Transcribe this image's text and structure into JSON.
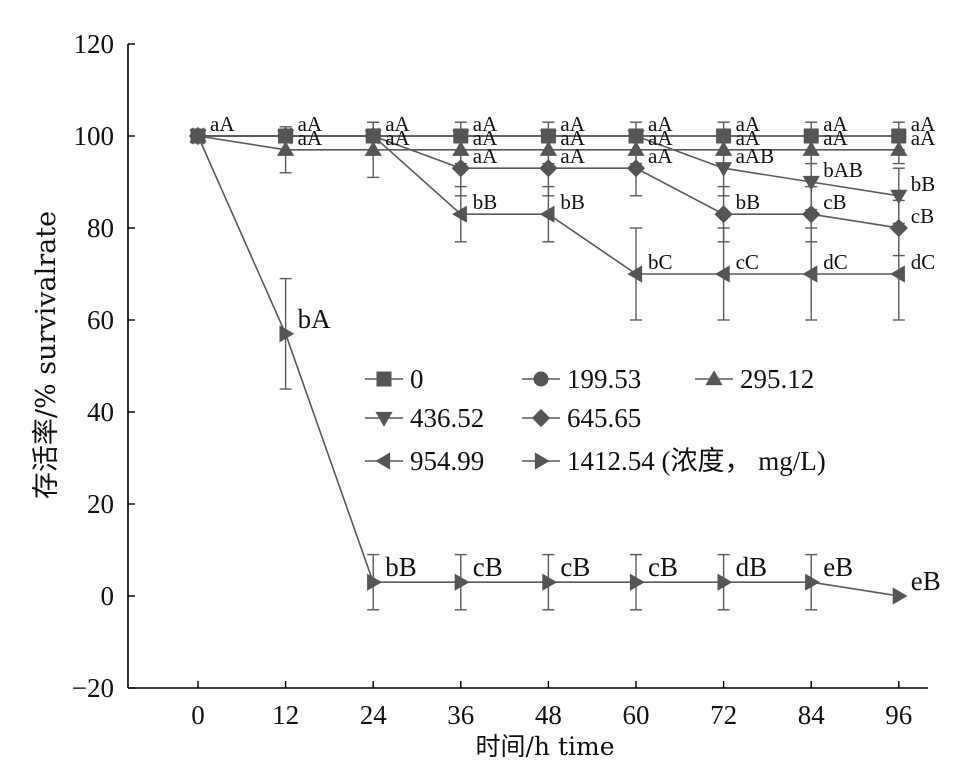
{
  "chart_data": {
    "type": "line",
    "xlabel": "时间/h time",
    "ylabel": "存活率/% survivalrate",
    "x": [
      0,
      12,
      24,
      36,
      48,
      60,
      72,
      84,
      96
    ],
    "xlim": [
      -15,
      104
    ],
    "ylim": [
      -20,
      120
    ],
    "yticks": [
      -20,
      0,
      20,
      40,
      60,
      80,
      100,
      120
    ],
    "grid": false,
    "legend_suffix": "(浓度， mg/L)",
    "series": [
      {
        "name": "0",
        "marker": "square",
        "values": [
          100,
          100,
          100,
          100,
          100,
          100,
          100,
          100,
          100
        ],
        "errors": [
          0,
          0,
          0,
          0,
          0,
          0,
          0,
          0,
          0
        ]
      },
      {
        "name": "199.53",
        "marker": "circle",
        "values": [
          100,
          100,
          100,
          100,
          100,
          100,
          100,
          100,
          100
        ],
        "errors": [
          0,
          0,
          3,
          3,
          3,
          3,
          3,
          3,
          3
        ]
      },
      {
        "name": "295.12",
        "marker": "triangle-up",
        "values": [
          100,
          97,
          97,
          97,
          97,
          97,
          97,
          97,
          97
        ],
        "errors": [
          0,
          5,
          6,
          3,
          3,
          3,
          3,
          3,
          3
        ]
      },
      {
        "name": "436.52",
        "marker": "triangle-down",
        "values": [
          100,
          100,
          100,
          100,
          100,
          100,
          93,
          90,
          87
        ],
        "errors": [
          0,
          0,
          0,
          0,
          0,
          0,
          6,
          6,
          6
        ]
      },
      {
        "name": "645.65",
        "marker": "diamond",
        "values": [
          100,
          100,
          100,
          93,
          93,
          93,
          83,
          83,
          80
        ],
        "errors": [
          0,
          0,
          0,
          6,
          6,
          6,
          6,
          6,
          6
        ]
      },
      {
        "name": "954.99",
        "marker": "triangle-left",
        "values": [
          100,
          100,
          100,
          83,
          83,
          70,
          70,
          70,
          70
        ],
        "errors": [
          0,
          0,
          0,
          6,
          6,
          10,
          10,
          10,
          10
        ]
      },
      {
        "name": "1412.54",
        "marker": "triangle-right",
        "values": [
          100,
          57,
          3,
          3,
          3,
          3,
          3,
          3,
          0
        ],
        "errors": [
          0,
          12,
          6,
          6,
          6,
          6,
          6,
          6,
          0
        ]
      }
    ],
    "annotations": [
      {
        "x": 0,
        "y": 100,
        "text": "aA",
        "size": "small"
      },
      {
        "x": 12,
        "y": 100,
        "text": "aA",
        "size": "small"
      },
      {
        "x": 24,
        "y": 100,
        "text": "aA",
        "size": "small"
      },
      {
        "x": 36,
        "y": 100,
        "text": "aA",
        "size": "small"
      },
      {
        "x": 48,
        "y": 100,
        "text": "aA",
        "size": "small"
      },
      {
        "x": 60,
        "y": 100,
        "text": "aA",
        "size": "small"
      },
      {
        "x": 72,
        "y": 100,
        "text": "aA",
        "size": "small"
      },
      {
        "x": 84,
        "y": 100,
        "text": "aA",
        "size": "small"
      },
      {
        "x": 96,
        "y": 100,
        "text": "aA",
        "size": "small"
      },
      {
        "x": 36,
        "y": 97,
        "text": "aA",
        "size": "small"
      },
      {
        "x": 48,
        "y": 97,
        "text": "aA",
        "size": "small"
      },
      {
        "x": 60,
        "y": 97,
        "text": "aA",
        "size": "small"
      },
      {
        "x": 72,
        "y": 97,
        "text": "aA",
        "size": "small"
      },
      {
        "x": 84,
        "y": 97,
        "text": "aA",
        "size": "small"
      },
      {
        "x": 96,
        "y": 97,
        "text": "aA",
        "size": "small"
      },
      {
        "x": 12,
        "y": 97,
        "text": "aA",
        "size": "small"
      },
      {
        "x": 24,
        "y": 97,
        "text": "aA",
        "size": "small"
      },
      {
        "x": 36,
        "y": 93,
        "text": "aA",
        "size": "small"
      },
      {
        "x": 48,
        "y": 93,
        "text": "aA",
        "size": "small"
      },
      {
        "x": 60,
        "y": 93,
        "text": "aA",
        "size": "small"
      },
      {
        "x": 72,
        "y": 93,
        "text": "aAB",
        "size": "small"
      },
      {
        "x": 84,
        "y": 90,
        "text": "bAB",
        "size": "small"
      },
      {
        "x": 96,
        "y": 87,
        "text": "bB",
        "size": "small"
      },
      {
        "x": 36,
        "y": 83,
        "text": "bB",
        "size": "small"
      },
      {
        "x": 48,
        "y": 83,
        "text": "bB",
        "size": "small"
      },
      {
        "x": 72,
        "y": 83,
        "text": "bB",
        "size": "small"
      },
      {
        "x": 84,
        "y": 83,
        "text": "cB",
        "size": "small"
      },
      {
        "x": 96,
        "y": 80,
        "text": "cB",
        "size": "small"
      },
      {
        "x": 60,
        "y": 70,
        "text": "bC",
        "size": "small"
      },
      {
        "x": 72,
        "y": 70,
        "text": "cC",
        "size": "small"
      },
      {
        "x": 84,
        "y": 70,
        "text": "dC",
        "size": "small"
      },
      {
        "x": 96,
        "y": 70,
        "text": "dC",
        "size": "small"
      },
      {
        "x": 12,
        "y": 57,
        "text": "bA",
        "size": "large"
      },
      {
        "x": 24,
        "y": 3,
        "text": "bB",
        "size": "large"
      },
      {
        "x": 36,
        "y": 3,
        "text": "cB",
        "size": "large"
      },
      {
        "x": 48,
        "y": 3,
        "text": "cB",
        "size": "large"
      },
      {
        "x": 60,
        "y": 3,
        "text": "cB",
        "size": "large"
      },
      {
        "x": 72,
        "y": 3,
        "text": "dB",
        "size": "large"
      },
      {
        "x": 84,
        "y": 3,
        "text": "eB",
        "size": "large"
      },
      {
        "x": 96,
        "y": 0,
        "text": "eB",
        "size": "large"
      }
    ]
  }
}
